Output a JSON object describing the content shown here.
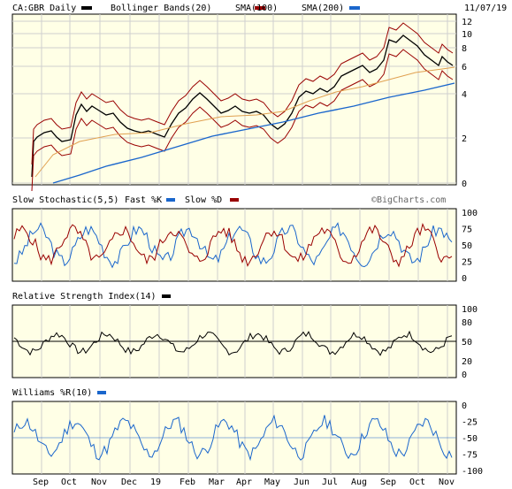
{
  "header": {
    "ticker_label": "CA:GBR Daily",
    "date": "11/07/19",
    "legend": [
      {
        "name": "Bollinger Bands(20)",
        "color": "#000000"
      },
      {
        "name": "SMA(100)",
        "color": "#990000"
      },
      {
        "name": "SMA(200)",
        "color": "#1a66cc"
      }
    ]
  },
  "watermark": "©BigCharts.com",
  "colors": {
    "plot_bg": "#ffffe6",
    "grid": "#cfcfcf",
    "price": "#000000",
    "bb": "#990000",
    "sma100": "#e0a050",
    "sma200": "#1a66cc",
    "stoch_fast": "#1a66cc",
    "stoch_slow": "#990000",
    "rsi": "#000000",
    "williams": "#1a66cc"
  },
  "x_axis": {
    "labels": [
      "Sep",
      "Oct",
      "Nov",
      "Dec",
      "19",
      "Feb",
      "Mar",
      "Apr",
      "May",
      "Jun",
      "Jul",
      "Aug",
      "Sep",
      "Oct",
      "Nov"
    ]
  },
  "panels": {
    "stoch": {
      "title": "Slow Stochastic(5,5)",
      "fast_label": "Fast %K",
      "slow_label": "Slow %D",
      "ticks": [
        "100",
        "75",
        "50",
        "25",
        "0"
      ]
    },
    "rsi": {
      "title": "Relative Strength Index(14)",
      "ticks": [
        "100",
        "80",
        "50",
        "20",
        "0"
      ]
    },
    "williams": {
      "title": "Williams %R(10)",
      "ticks": [
        "0",
        "-25",
        "-50",
        "-75",
        "-100"
      ]
    }
  },
  "chart_data": [
    {
      "type": "line",
      "title": "CA:GBR Daily",
      "scale": "log",
      "ylim": [
        0,
        12
      ],
      "y_ticks": [
        "12",
        "10",
        "8",
        "6",
        "4",
        "2",
        "0"
      ],
      "x_labels": [
        "Sep",
        "Oct",
        "Nov",
        "Dec",
        "19",
        "Feb",
        "Mar",
        "Apr",
        "May",
        "Jun",
        "Jul",
        "Aug",
        "Sep",
        "Oct",
        "Nov"
      ],
      "series": [
        {
          "name": "Bollinger Bands(20)",
          "values_approx": [
            [
              "Aug",
              0.3
            ],
            [
              "Sep",
              2.2
            ],
            [
              "Sep",
              2.4
            ],
            [
              "Oct",
              3.6
            ],
            [
              "Oct",
              3.2
            ],
            [
              "Nov",
              3.3
            ],
            [
              "Nov",
              3.1
            ],
            [
              "Dec",
              2.6
            ],
            [
              "Dec",
              2.3
            ],
            [
              "19",
              2.3
            ],
            [
              "19",
              2.6
            ],
            [
              "Feb",
              3.4
            ],
            [
              "Feb",
              3.9
            ],
            [
              "Mar",
              3.4
            ],
            [
              "Mar",
              3.0
            ],
            [
              "Apr",
              3.2
            ],
            [
              "Apr",
              2.9
            ],
            [
              "May",
              2.7
            ],
            [
              "May",
              2.6
            ],
            [
              "Jun",
              3.8
            ],
            [
              "Jun",
              4.2
            ],
            [
              "Jul",
              4.0
            ],
            [
              "Jul",
              4.4
            ],
            [
              "Aug",
              5.2
            ],
            [
              "Aug",
              5.8
            ],
            [
              "Sep",
              8.5
            ],
            [
              "Sep",
              9.6
            ],
            [
              "Oct",
              7.5
            ],
            [
              "Oct",
              6.6
            ],
            [
              "Nov",
              6.3
            ]
          ]
        },
        {
          "name": "SMA(100)",
          "values_approx": []
        },
        {
          "name": "SMA(200)",
          "values_approx": []
        }
      ]
    },
    {
      "type": "line",
      "title": "Slow Stochastic(5,5)",
      "ylim": [
        0,
        100
      ],
      "series": [
        {
          "name": "Fast %K"
        },
        {
          "name": "Slow %D"
        }
      ]
    },
    {
      "type": "line",
      "title": "Relative Strength Index(14)",
      "ylim": [
        0,
        100
      ]
    },
    {
      "type": "line",
      "title": "Williams %R(10)",
      "ylim": [
        -100,
        0
      ]
    }
  ]
}
